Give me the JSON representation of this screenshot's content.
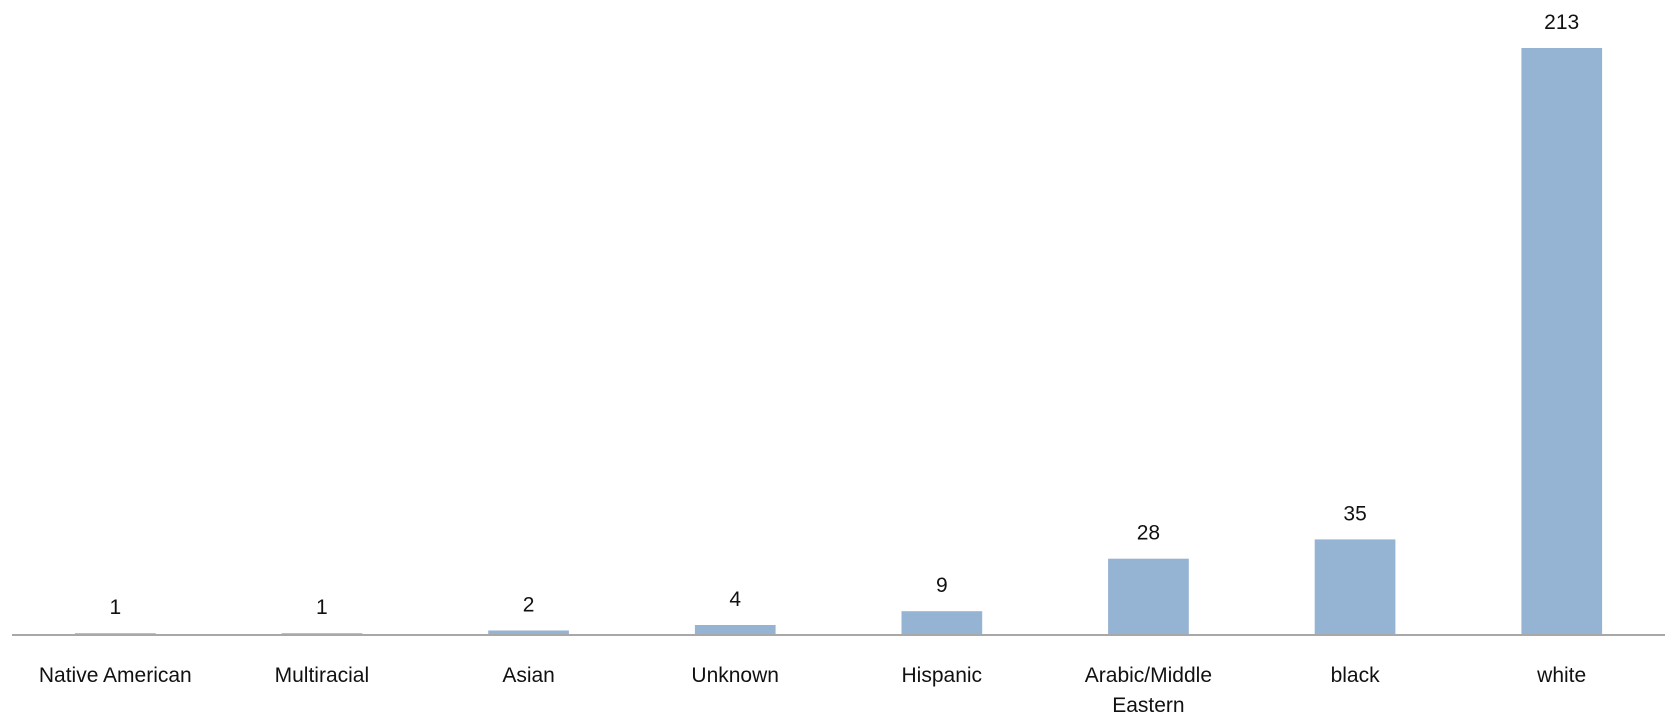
{
  "chart_data": {
    "type": "bar",
    "title": "",
    "xlabel": "",
    "ylabel": "",
    "categories": [
      "Native American",
      "Multiracial",
      "Asian",
      "Unknown",
      "Hispanic",
      "Arabic/Middle Eastern",
      "black",
      "white"
    ],
    "category_lines": [
      [
        "Native American"
      ],
      [
        "Multiracial"
      ],
      [
        "Asian"
      ],
      [
        "Unknown"
      ],
      [
        "Hispanic"
      ],
      [
        "Arabic/Middle",
        "Eastern"
      ],
      [
        "black"
      ],
      [
        "white"
      ]
    ],
    "values": [
      1,
      1,
      2,
      4,
      9,
      28,
      35,
      213
    ],
    "data_labels": [
      "1",
      "1",
      "2",
      "4",
      "9",
      "28",
      "35",
      "213"
    ],
    "ylim": [
      0,
      213
    ],
    "grid": false,
    "legend": "none",
    "colors": {
      "bar": "#95b3d2",
      "axis": "#8c8c8c",
      "text": "#111111"
    }
  }
}
